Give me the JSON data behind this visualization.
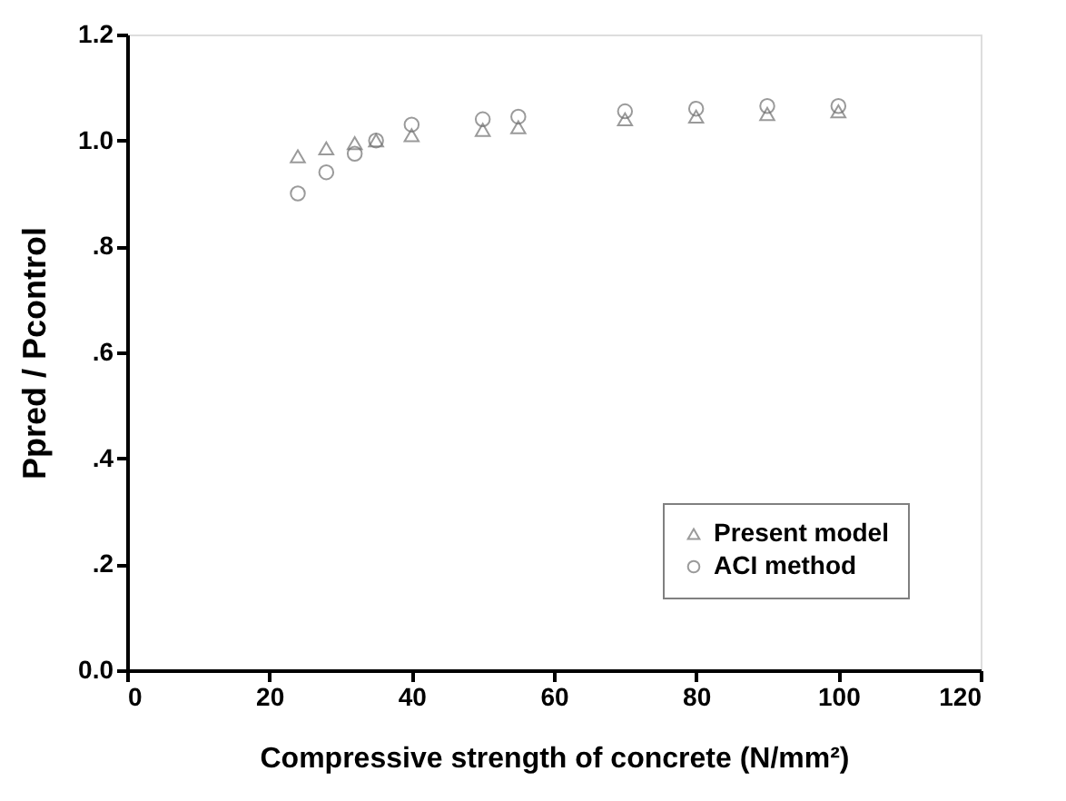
{
  "chart_data": {
    "type": "scatter",
    "xlabel": "Compressive strength of concrete (N/mm²)",
    "ylabel": "Ppred / Pcontrol",
    "x": [
      24,
      28,
      32,
      35,
      40,
      50,
      55,
      70,
      80,
      90,
      100
    ],
    "series": [
      {
        "name": "Present model",
        "color": "#707070",
        "marker": "triangle",
        "values": [
          0.97,
          0.985,
          0.995,
          1.0,
          1.01,
          1.02,
          1.025,
          1.04,
          1.045,
          1.05,
          1.055
        ]
      },
      {
        "name": "ACI method",
        "color": "#707070",
        "marker": "circle",
        "values": [
          0.9,
          0.94,
          0.975,
          1.0,
          1.03,
          1.04,
          1.045,
          1.055,
          1.06,
          1.065,
          1.065
        ]
      }
    ],
    "xlim": [
      0,
      120
    ],
    "xticks": [
      0,
      20,
      40,
      60,
      80,
      100,
      120
    ],
    "ylim": [
      0,
      1.2
    ],
    "yticks": [
      {
        "value": 0,
        "label": "0.0"
      },
      {
        "value": 0.2,
        "label": ".2"
      },
      {
        "value": 0.4,
        "label": ".4"
      },
      {
        "value": 0.6,
        "label": ".6"
      },
      {
        "value": 0.8,
        "label": ".8"
      },
      {
        "value": 1.0,
        "label": "1.0"
      },
      {
        "value": 1.2,
        "label": "1.2"
      }
    ],
    "grid": false,
    "legend": "bottom right"
  }
}
